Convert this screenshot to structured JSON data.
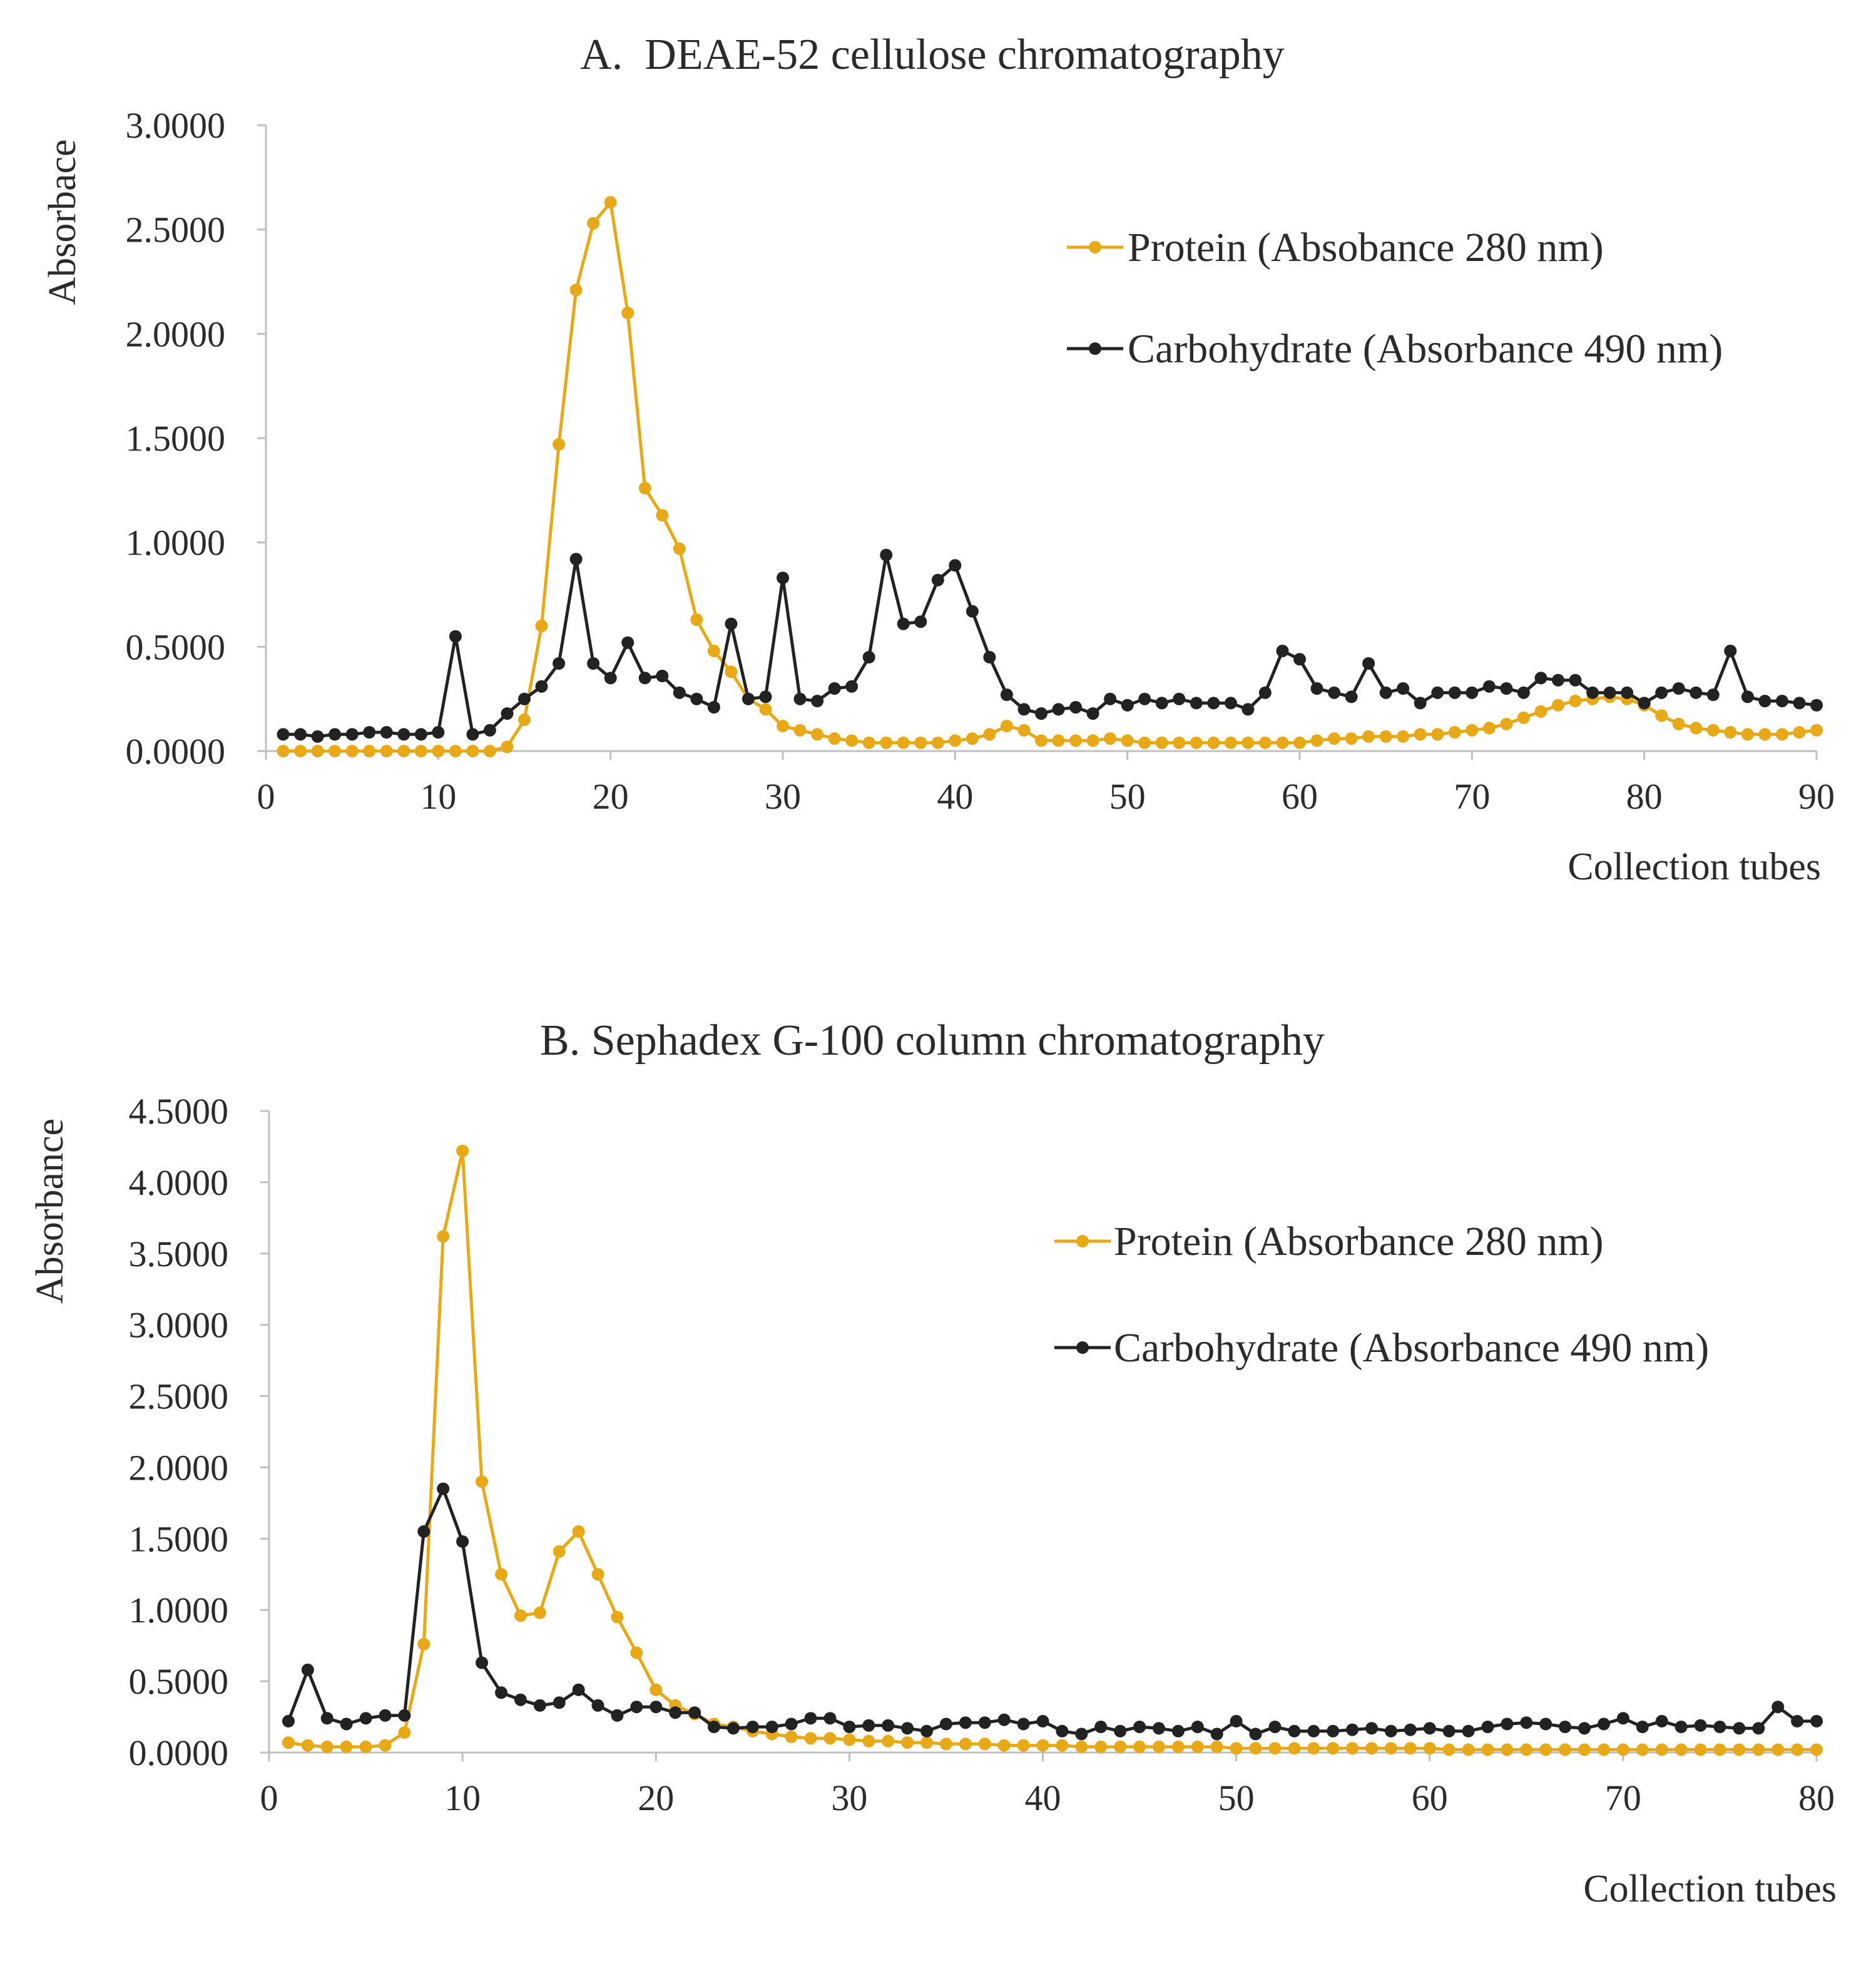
{
  "figure": {
    "background": "#ffffff"
  },
  "colors": {
    "protein": "#E8A918",
    "carbohydrate": "#222222",
    "axis": "#bfbfbf",
    "text": "#2b2b2b"
  },
  "chart_data": [
    {
      "type": "line",
      "title": "A.  DEAE-52 cellulose chromatography",
      "xlabel": "Collection tubes",
      "ylabel": "Absorbace",
      "xlim": [
        0,
        90
      ],
      "ylim": [
        0,
        3
      ],
      "xticks": [
        0,
        10,
        20,
        30,
        40,
        50,
        60,
        70,
        80,
        90
      ],
      "xtick_labels": [
        "0",
        "10",
        "20",
        "30",
        "40",
        "50",
        "60",
        "70",
        "80",
        "90"
      ],
      "yticks": [
        0,
        0.5,
        1,
        1.5,
        2,
        2.5,
        3
      ],
      "ytick_labels": [
        "0.0000",
        "0.5000",
        "1.0000",
        "1.5000",
        "2.0000",
        "2.5000",
        "3.0000"
      ],
      "legend_position": "right",
      "series": [
        {
          "name": "Protein (Absobance 280 nm)",
          "color_key": "protein",
          "x": [
            1,
            2,
            3,
            4,
            5,
            6,
            7,
            8,
            9,
            10,
            11,
            12,
            13,
            14,
            15,
            16,
            17,
            18,
            19,
            20,
            21,
            22,
            23,
            24,
            25,
            26,
            27,
            28,
            29,
            30,
            31,
            32,
            33,
            34,
            35,
            36,
            37,
            38,
            39,
            40,
            41,
            42,
            43,
            44,
            45,
            46,
            47,
            48,
            49,
            50,
            51,
            52,
            53,
            54,
            55,
            56,
            57,
            58,
            59,
            60,
            61,
            62,
            63,
            64,
            65,
            66,
            67,
            68,
            69,
            70,
            71,
            72,
            73,
            74,
            75,
            76,
            77,
            78,
            79,
            80,
            81,
            82,
            83,
            84,
            85,
            86,
            87,
            88,
            89,
            90
          ],
          "y": [
            0,
            0,
            0,
            0,
            0,
            0,
            0,
            0,
            0,
            0,
            0,
            0,
            0,
            0.02,
            0.15,
            0.6,
            1.47,
            2.21,
            2.53,
            2.63,
            2.1,
            1.26,
            1.13,
            0.97,
            0.63,
            0.48,
            0.38,
            0.25,
            0.2,
            0.12,
            0.1,
            0.08,
            0.06,
            0.05,
            0.04,
            0.04,
            0.04,
            0.04,
            0.04,
            0.05,
            0.06,
            0.08,
            0.12,
            0.1,
            0.05,
            0.05,
            0.05,
            0.05,
            0.06,
            0.05,
            0.04,
            0.04,
            0.04,
            0.04,
            0.04,
            0.04,
            0.04,
            0.04,
            0.04,
            0.04,
            0.05,
            0.06,
            0.06,
            0.07,
            0.07,
            0.07,
            0.08,
            0.08,
            0.09,
            0.1,
            0.11,
            0.13,
            0.16,
            0.19,
            0.22,
            0.24,
            0.25,
            0.26,
            0.25,
            0.22,
            0.17,
            0.13,
            0.11,
            0.1,
            0.09,
            0.08,
            0.08,
            0.08,
            0.09,
            0.1
          ]
        },
        {
          "name": "Carbohydrate (Absorbance 490 nm)",
          "color_key": "carbohydrate",
          "x": [
            1,
            2,
            3,
            4,
            5,
            6,
            7,
            8,
            9,
            10,
            11,
            12,
            13,
            14,
            15,
            16,
            17,
            18,
            19,
            20,
            21,
            22,
            23,
            24,
            25,
            26,
            27,
            28,
            29,
            30,
            31,
            32,
            33,
            34,
            35,
            36,
            37,
            38,
            39,
            40,
            41,
            42,
            43,
            44,
            45,
            46,
            47,
            48,
            49,
            50,
            51,
            52,
            53,
            54,
            55,
            56,
            57,
            58,
            59,
            60,
            61,
            62,
            63,
            64,
            65,
            66,
            67,
            68,
            69,
            70,
            71,
            72,
            73,
            74,
            75,
            76,
            77,
            78,
            79,
            80,
            81,
            82,
            83,
            84,
            85,
            86,
            87,
            88,
            89,
            90
          ],
          "y": [
            0.08,
            0.08,
            0.07,
            0.08,
            0.08,
            0.09,
            0.09,
            0.08,
            0.08,
            0.09,
            0.55,
            0.08,
            0.1,
            0.18,
            0.25,
            0.31,
            0.42,
            0.92,
            0.42,
            0.35,
            0.52,
            0.35,
            0.36,
            0.28,
            0.25,
            0.21,
            0.61,
            0.25,
            0.26,
            0.83,
            0.25,
            0.24,
            0.3,
            0.31,
            0.45,
            0.94,
            0.61,
            0.62,
            0.82,
            0.89,
            0.67,
            0.45,
            0.27,
            0.2,
            0.18,
            0.2,
            0.21,
            0.18,
            0.25,
            0.22,
            0.25,
            0.23,
            0.25,
            0.23,
            0.23,
            0.23,
            0.2,
            0.28,
            0.48,
            0.44,
            0.3,
            0.28,
            0.26,
            0.42,
            0.28,
            0.3,
            0.23,
            0.28,
            0.28,
            0.28,
            0.31,
            0.3,
            0.28,
            0.35,
            0.34,
            0.34,
            0.28,
            0.28,
            0.28,
            0.23,
            0.28,
            0.3,
            0.28,
            0.27,
            0.48,
            0.26,
            0.24,
            0.24,
            0.23,
            0.22
          ]
        }
      ]
    },
    {
      "type": "line",
      "title": "B. Sephadex G-100 column chromatography",
      "xlabel": "Collection tubes",
      "ylabel": "Absorbance",
      "xlim": [
        0,
        80
      ],
      "ylim": [
        0,
        4.5
      ],
      "xticks": [
        0,
        10,
        20,
        30,
        40,
        50,
        60,
        70,
        80
      ],
      "xtick_labels": [
        "0",
        "10",
        "20",
        "30",
        "40",
        "50",
        "60",
        "70",
        "80"
      ],
      "yticks": [
        0,
        0.5,
        1,
        1.5,
        2,
        2.5,
        3,
        3.5,
        4,
        4.5
      ],
      "ytick_labels": [
        "0.0000",
        "0.5000",
        "1.0000",
        "1.5000",
        "2.0000",
        "2.5000",
        "3.0000",
        "3.5000",
        "4.0000",
        "4.5000"
      ],
      "legend_position": "right",
      "series": [
        {
          "name": "Protein (Absorbance 280 nm)",
          "color_key": "protein",
          "x": [
            1,
            2,
            3,
            4,
            5,
            6,
            7,
            8,
            9,
            10,
            11,
            12,
            13,
            14,
            15,
            16,
            17,
            18,
            19,
            20,
            21,
            22,
            23,
            24,
            25,
            26,
            27,
            28,
            29,
            30,
            31,
            32,
            33,
            34,
            35,
            36,
            37,
            38,
            39,
            40,
            41,
            42,
            43,
            44,
            45,
            46,
            47,
            48,
            49,
            50,
            51,
            52,
            53,
            54,
            55,
            56,
            57,
            58,
            59,
            60,
            61,
            62,
            63,
            64,
            65,
            66,
            67,
            68,
            69,
            70,
            71,
            72,
            73,
            74,
            75,
            76,
            77,
            78,
            79,
            80
          ],
          "y": [
            0.07,
            0.05,
            0.04,
            0.04,
            0.04,
            0.05,
            0.14,
            0.76,
            3.62,
            4.22,
            1.9,
            1.25,
            0.96,
            0.98,
            1.41,
            1.55,
            1.25,
            0.95,
            0.7,
            0.44,
            0.33,
            0.27,
            0.2,
            0.18,
            0.15,
            0.13,
            0.11,
            0.1,
            0.1,
            0.09,
            0.08,
            0.08,
            0.07,
            0.07,
            0.06,
            0.06,
            0.06,
            0.05,
            0.05,
            0.05,
            0.05,
            0.04,
            0.04,
            0.04,
            0.04,
            0.04,
            0.04,
            0.04,
            0.04,
            0.03,
            0.03,
            0.03,
            0.03,
            0.03,
            0.03,
            0.03,
            0.03,
            0.03,
            0.03,
            0.03,
            0.02,
            0.02,
            0.02,
            0.02,
            0.02,
            0.02,
            0.02,
            0.02,
            0.02,
            0.02,
            0.02,
            0.02,
            0.02,
            0.02,
            0.02,
            0.02,
            0.02,
            0.02,
            0.02,
            0.02
          ]
        },
        {
          "name": "Carbohydrate (Absorbance 490 nm)",
          "color_key": "carbohydrate",
          "x": [
            1,
            2,
            3,
            4,
            5,
            6,
            7,
            8,
            9,
            10,
            11,
            12,
            13,
            14,
            15,
            16,
            17,
            18,
            19,
            20,
            21,
            22,
            23,
            24,
            25,
            26,
            27,
            28,
            29,
            30,
            31,
            32,
            33,
            34,
            35,
            36,
            37,
            38,
            39,
            40,
            41,
            42,
            43,
            44,
            45,
            46,
            47,
            48,
            49,
            50,
            51,
            52,
            53,
            54,
            55,
            56,
            57,
            58,
            59,
            60,
            61,
            62,
            63,
            64,
            65,
            66,
            67,
            68,
            69,
            70,
            71,
            72,
            73,
            74,
            75,
            76,
            77,
            78,
            79,
            80
          ],
          "y": [
            0.22,
            0.58,
            0.24,
            0.2,
            0.24,
            0.26,
            0.26,
            1.55,
            1.85,
            1.48,
            0.63,
            0.42,
            0.37,
            0.33,
            0.35,
            0.44,
            0.33,
            0.26,
            0.32,
            0.32,
            0.28,
            0.28,
            0.18,
            0.17,
            0.18,
            0.18,
            0.2,
            0.24,
            0.24,
            0.18,
            0.19,
            0.19,
            0.17,
            0.15,
            0.2,
            0.21,
            0.21,
            0.23,
            0.2,
            0.22,
            0.15,
            0.13,
            0.18,
            0.15,
            0.18,
            0.17,
            0.15,
            0.18,
            0.13,
            0.22,
            0.13,
            0.18,
            0.15,
            0.15,
            0.15,
            0.16,
            0.17,
            0.15,
            0.16,
            0.17,
            0.15,
            0.15,
            0.18,
            0.2,
            0.21,
            0.2,
            0.18,
            0.17,
            0.2,
            0.24,
            0.18,
            0.22,
            0.18,
            0.19,
            0.18,
            0.17,
            0.17,
            0.32,
            0.22,
            0.22
          ]
        }
      ]
    }
  ]
}
